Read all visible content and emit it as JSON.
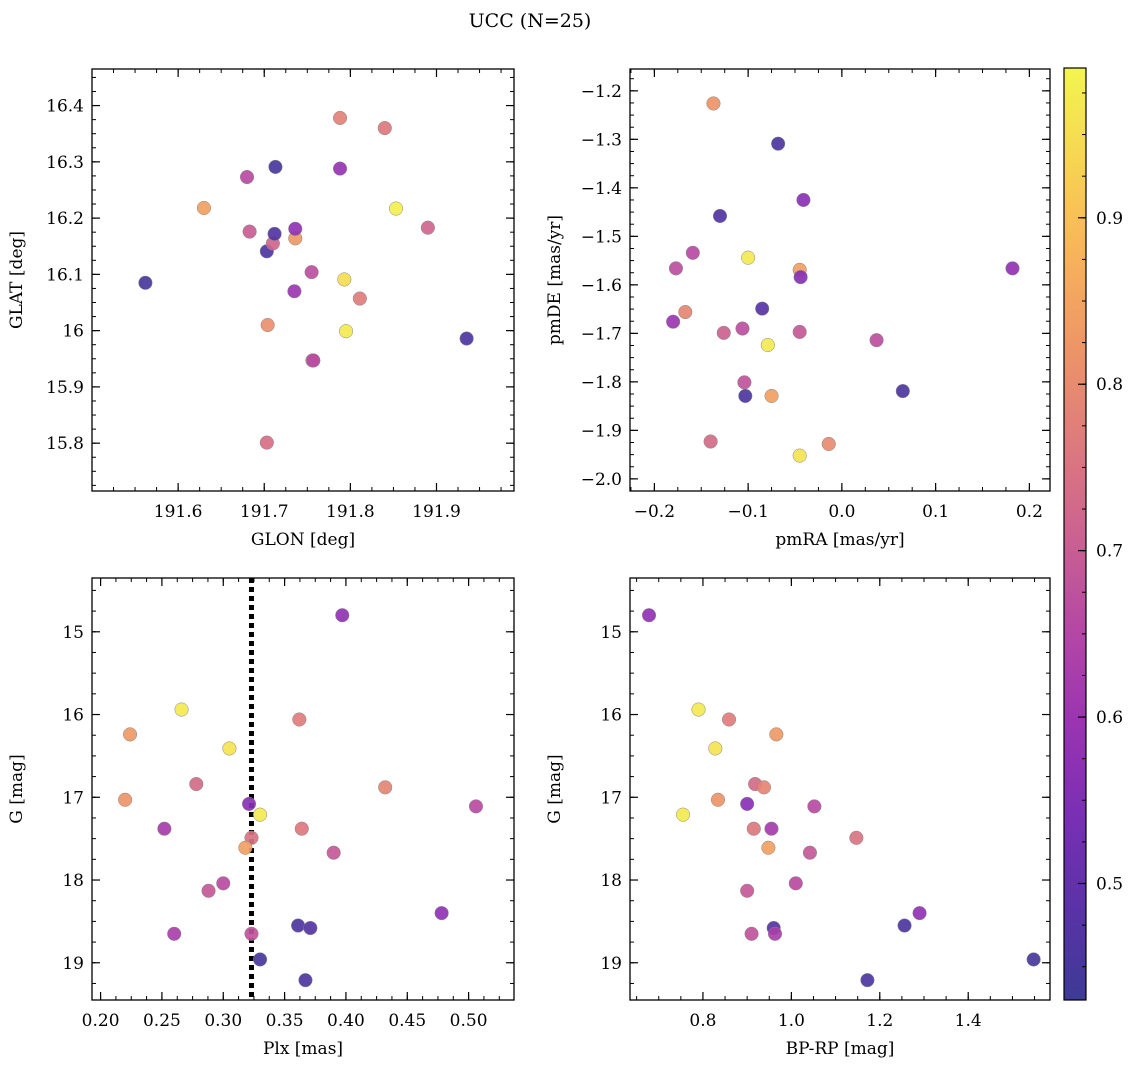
{
  "figure": {
    "title": "UCC (N=25)"
  },
  "colors": {
    "colormap": "plasma",
    "cmap_stops": [
      "#3d3a96",
      "#5b32a8",
      "#7a2fb5",
      "#9b34b2",
      "#b648a4",
      "#cc6290",
      "#de7b7d",
      "#ee9567",
      "#f8b35a",
      "#f7d452",
      "#f3f54f"
    ],
    "dotted_line": "#000000",
    "marker_edge": "#888888"
  },
  "colorbar": {
    "ticks": [
      0.5,
      0.6,
      0.7,
      0.8,
      0.9
    ],
    "range": [
      0.43,
      0.99
    ]
  },
  "chart_data": [
    {
      "type": "scatter",
      "xlabel": "GLON [deg]",
      "ylabel": "GLAT [deg]",
      "xlim": [
        191.5,
        191.99
      ],
      "ylim": [
        15.715,
        16.465
      ],
      "xticks": [
        191.6,
        191.7,
        191.8,
        191.9
      ],
      "yticks": [
        15.8,
        15.9,
        16.0,
        16.1,
        16.2,
        16.3,
        16.4
      ],
      "points": [
        {
          "x": 191.562,
          "y": 16.085,
          "c": 0.45
        },
        {
          "x": 191.63,
          "y": 16.218,
          "c": 0.84
        },
        {
          "x": 191.68,
          "y": 16.273,
          "c": 0.66
        },
        {
          "x": 191.683,
          "y": 16.176,
          "c": 0.7
        },
        {
          "x": 191.703,
          "y": 16.141,
          "c": 0.46
        },
        {
          "x": 191.704,
          "y": 16.01,
          "c": 0.81
        },
        {
          "x": 191.703,
          "y": 15.801,
          "c": 0.74
        },
        {
          "x": 191.71,
          "y": 16.155,
          "c": 0.72
        },
        {
          "x": 191.712,
          "y": 16.172,
          "c": 0.47
        },
        {
          "x": 191.713,
          "y": 16.291,
          "c": 0.45
        },
        {
          "x": 191.735,
          "y": 16.07,
          "c": 0.6
        },
        {
          "x": 191.736,
          "y": 16.164,
          "c": 0.83
        },
        {
          "x": 191.736,
          "y": 16.181,
          "c": 0.58
        },
        {
          "x": 191.755,
          "y": 16.104,
          "c": 0.67
        },
        {
          "x": 191.756,
          "y": 15.947,
          "c": 0.72
        },
        {
          "x": 191.757,
          "y": 15.947,
          "c": 0.66
        },
        {
          "x": 191.788,
          "y": 16.378,
          "c": 0.78
        },
        {
          "x": 191.788,
          "y": 16.288,
          "c": 0.59
        },
        {
          "x": 191.793,
          "y": 16.091,
          "c": 0.95
        },
        {
          "x": 191.795,
          "y": 15.999,
          "c": 0.97
        },
        {
          "x": 191.811,
          "y": 16.057,
          "c": 0.77
        },
        {
          "x": 191.84,
          "y": 16.36,
          "c": 0.76
        },
        {
          "x": 191.853,
          "y": 16.217,
          "c": 0.98
        },
        {
          "x": 191.89,
          "y": 16.183,
          "c": 0.72
        },
        {
          "x": 191.935,
          "y": 15.986,
          "c": 0.46
        }
      ]
    },
    {
      "type": "scatter",
      "xlabel": "pmRA [mas/yr]",
      "ylabel": "pmDE [mas/yr]",
      "xlim": [
        -0.226,
        0.222
      ],
      "ylim": [
        -2.025,
        -1.155
      ],
      "xticks": [
        -0.2,
        -0.1,
        0.0,
        0.1,
        0.2
      ],
      "xticklabels": [
        "−0.2",
        "−0.1",
        "0.0",
        "0.1",
        "0.2"
      ],
      "yticks": [
        -2.0,
        -1.9,
        -1.8,
        -1.7,
        -1.6,
        -1.5,
        -1.4,
        -1.3,
        -1.2
      ],
      "yticklabels": [
        "−2.0",
        "−1.9",
        "−1.8",
        "−1.7",
        "−1.6",
        "−1.5",
        "−1.4",
        "−1.3",
        "−1.2"
      ],
      "points": [
        {
          "x": -0.137,
          "y": -1.226,
          "c": 0.82
        },
        {
          "x": -0.068,
          "y": -1.309,
          "c": 0.46
        },
        {
          "x": -0.041,
          "y": -1.425,
          "c": 0.57
        },
        {
          "x": -0.13,
          "y": -1.458,
          "c": 0.47
        },
        {
          "x": -0.159,
          "y": -1.534,
          "c": 0.66
        },
        {
          "x": -0.1,
          "y": -1.544,
          "c": 0.97
        },
        {
          "x": -0.177,
          "y": -1.566,
          "c": 0.67
        },
        {
          "x": -0.045,
          "y": -1.569,
          "c": 0.84
        },
        {
          "x": -0.044,
          "y": -1.584,
          "c": 0.56
        },
        {
          "x": 0.182,
          "y": -1.566,
          "c": 0.58
        },
        {
          "x": -0.085,
          "y": -1.649,
          "c": 0.48
        },
        {
          "x": -0.167,
          "y": -1.656,
          "c": 0.79
        },
        {
          "x": -0.18,
          "y": -1.676,
          "c": 0.6
        },
        {
          "x": -0.106,
          "y": -1.69,
          "c": 0.67
        },
        {
          "x": -0.126,
          "y": -1.699,
          "c": 0.71
        },
        {
          "x": -0.045,
          "y": -1.697,
          "c": 0.69
        },
        {
          "x": 0.037,
          "y": -1.714,
          "c": 0.67
        },
        {
          "x": -0.079,
          "y": -1.724,
          "c": 0.97
        },
        {
          "x": -0.104,
          "y": -1.801,
          "c": 0.68
        },
        {
          "x": 0.065,
          "y": -1.819,
          "c": 0.46
        },
        {
          "x": -0.075,
          "y": -1.829,
          "c": 0.84
        },
        {
          "x": -0.103,
          "y": -1.829,
          "c": 0.46
        },
        {
          "x": -0.14,
          "y": -1.923,
          "c": 0.73
        },
        {
          "x": -0.014,
          "y": -1.928,
          "c": 0.8
        },
        {
          "x": -0.045,
          "y": -1.952,
          "c": 0.96
        }
      ]
    },
    {
      "type": "scatter",
      "xlabel": "Plx [mas]",
      "ylabel": "G [mag]",
      "xlim": [
        0.193,
        0.537
      ],
      "ylim": [
        19.45,
        14.35
      ],
      "y_inverted": true,
      "xticks": [
        0.2,
        0.25,
        0.3,
        0.35,
        0.4,
        0.45,
        0.5
      ],
      "xticklabels": [
        "0.20",
        "0.25",
        "0.30",
        "0.35",
        "0.40",
        "0.45",
        "0.50"
      ],
      "yticks": [
        15,
        16,
        17,
        18,
        19
      ],
      "vline": {
        "x": 0.323,
        "style": "dotted"
      },
      "points": [
        {
          "x": 0.397,
          "y": 14.8,
          "c": 0.58
        },
        {
          "x": 0.266,
          "y": 15.94,
          "c": 0.97
        },
        {
          "x": 0.362,
          "y": 16.06,
          "c": 0.77
        },
        {
          "x": 0.224,
          "y": 16.24,
          "c": 0.83
        },
        {
          "x": 0.305,
          "y": 16.41,
          "c": 0.96
        },
        {
          "x": 0.278,
          "y": 16.84,
          "c": 0.73
        },
        {
          "x": 0.432,
          "y": 16.88,
          "c": 0.79
        },
        {
          "x": 0.22,
          "y": 17.03,
          "c": 0.82
        },
        {
          "x": 0.321,
          "y": 17.08,
          "c": 0.57
        },
        {
          "x": 0.506,
          "y": 17.11,
          "c": 0.66
        },
        {
          "x": 0.33,
          "y": 17.21,
          "c": 0.97
        },
        {
          "x": 0.252,
          "y": 17.38,
          "c": 0.62
        },
        {
          "x": 0.364,
          "y": 17.38,
          "c": 0.76
        },
        {
          "x": 0.323,
          "y": 17.49,
          "c": 0.75
        },
        {
          "x": 0.318,
          "y": 17.61,
          "c": 0.84
        },
        {
          "x": 0.39,
          "y": 17.67,
          "c": 0.69
        },
        {
          "x": 0.3,
          "y": 18.04,
          "c": 0.66
        },
        {
          "x": 0.288,
          "y": 18.13,
          "c": 0.69
        },
        {
          "x": 0.478,
          "y": 18.4,
          "c": 0.58
        },
        {
          "x": 0.361,
          "y": 18.55,
          "c": 0.46
        },
        {
          "x": 0.371,
          "y": 18.58,
          "c": 0.47
        },
        {
          "x": 0.26,
          "y": 18.65,
          "c": 0.63
        },
        {
          "x": 0.323,
          "y": 18.65,
          "c": 0.68
        },
        {
          "x": 0.33,
          "y": 18.96,
          "c": 0.45
        },
        {
          "x": 0.367,
          "y": 19.21,
          "c": 0.46
        }
      ]
    },
    {
      "type": "scatter",
      "xlabel": "BP-RP [mag]",
      "ylabel": "G [mag]",
      "xlim": [
        0.635,
        1.585
      ],
      "ylim": [
        19.45,
        14.35
      ],
      "y_inverted": true,
      "xticks": [
        0.8,
        1.0,
        1.2,
        1.4
      ],
      "xticklabels": [
        "0.8",
        "1.0",
        "1.2",
        "1.4"
      ],
      "yticks": [
        15,
        16,
        17,
        18,
        19
      ],
      "points": [
        {
          "x": 0.678,
          "y": 14.8,
          "c": 0.58
        },
        {
          "x": 0.79,
          "y": 15.94,
          "c": 0.97
        },
        {
          "x": 0.859,
          "y": 16.06,
          "c": 0.77
        },
        {
          "x": 0.966,
          "y": 16.24,
          "c": 0.83
        },
        {
          "x": 0.828,
          "y": 16.41,
          "c": 0.96
        },
        {
          "x": 0.918,
          "y": 16.84,
          "c": 0.73
        },
        {
          "x": 0.938,
          "y": 16.88,
          "c": 0.79
        },
        {
          "x": 0.834,
          "y": 17.03,
          "c": 0.82
        },
        {
          "x": 0.9,
          "y": 17.08,
          "c": 0.57
        },
        {
          "x": 1.052,
          "y": 17.11,
          "c": 0.66
        },
        {
          "x": 0.755,
          "y": 17.21,
          "c": 0.97
        },
        {
          "x": 0.955,
          "y": 17.38,
          "c": 0.62
        },
        {
          "x": 0.915,
          "y": 17.38,
          "c": 0.76
        },
        {
          "x": 1.147,
          "y": 17.49,
          "c": 0.75
        },
        {
          "x": 0.948,
          "y": 17.61,
          "c": 0.84
        },
        {
          "x": 1.042,
          "y": 17.67,
          "c": 0.69
        },
        {
          "x": 1.01,
          "y": 18.04,
          "c": 0.66
        },
        {
          "x": 0.9,
          "y": 18.13,
          "c": 0.69
        },
        {
          "x": 1.29,
          "y": 18.4,
          "c": 0.58
        },
        {
          "x": 1.256,
          "y": 18.55,
          "c": 0.46
        },
        {
          "x": 0.96,
          "y": 18.58,
          "c": 0.47
        },
        {
          "x": 0.963,
          "y": 18.65,
          "c": 0.63
        },
        {
          "x": 0.91,
          "y": 18.65,
          "c": 0.68
        },
        {
          "x": 1.548,
          "y": 18.96,
          "c": 0.45
        },
        {
          "x": 1.172,
          "y": 19.21,
          "c": 0.46
        }
      ]
    }
  ]
}
